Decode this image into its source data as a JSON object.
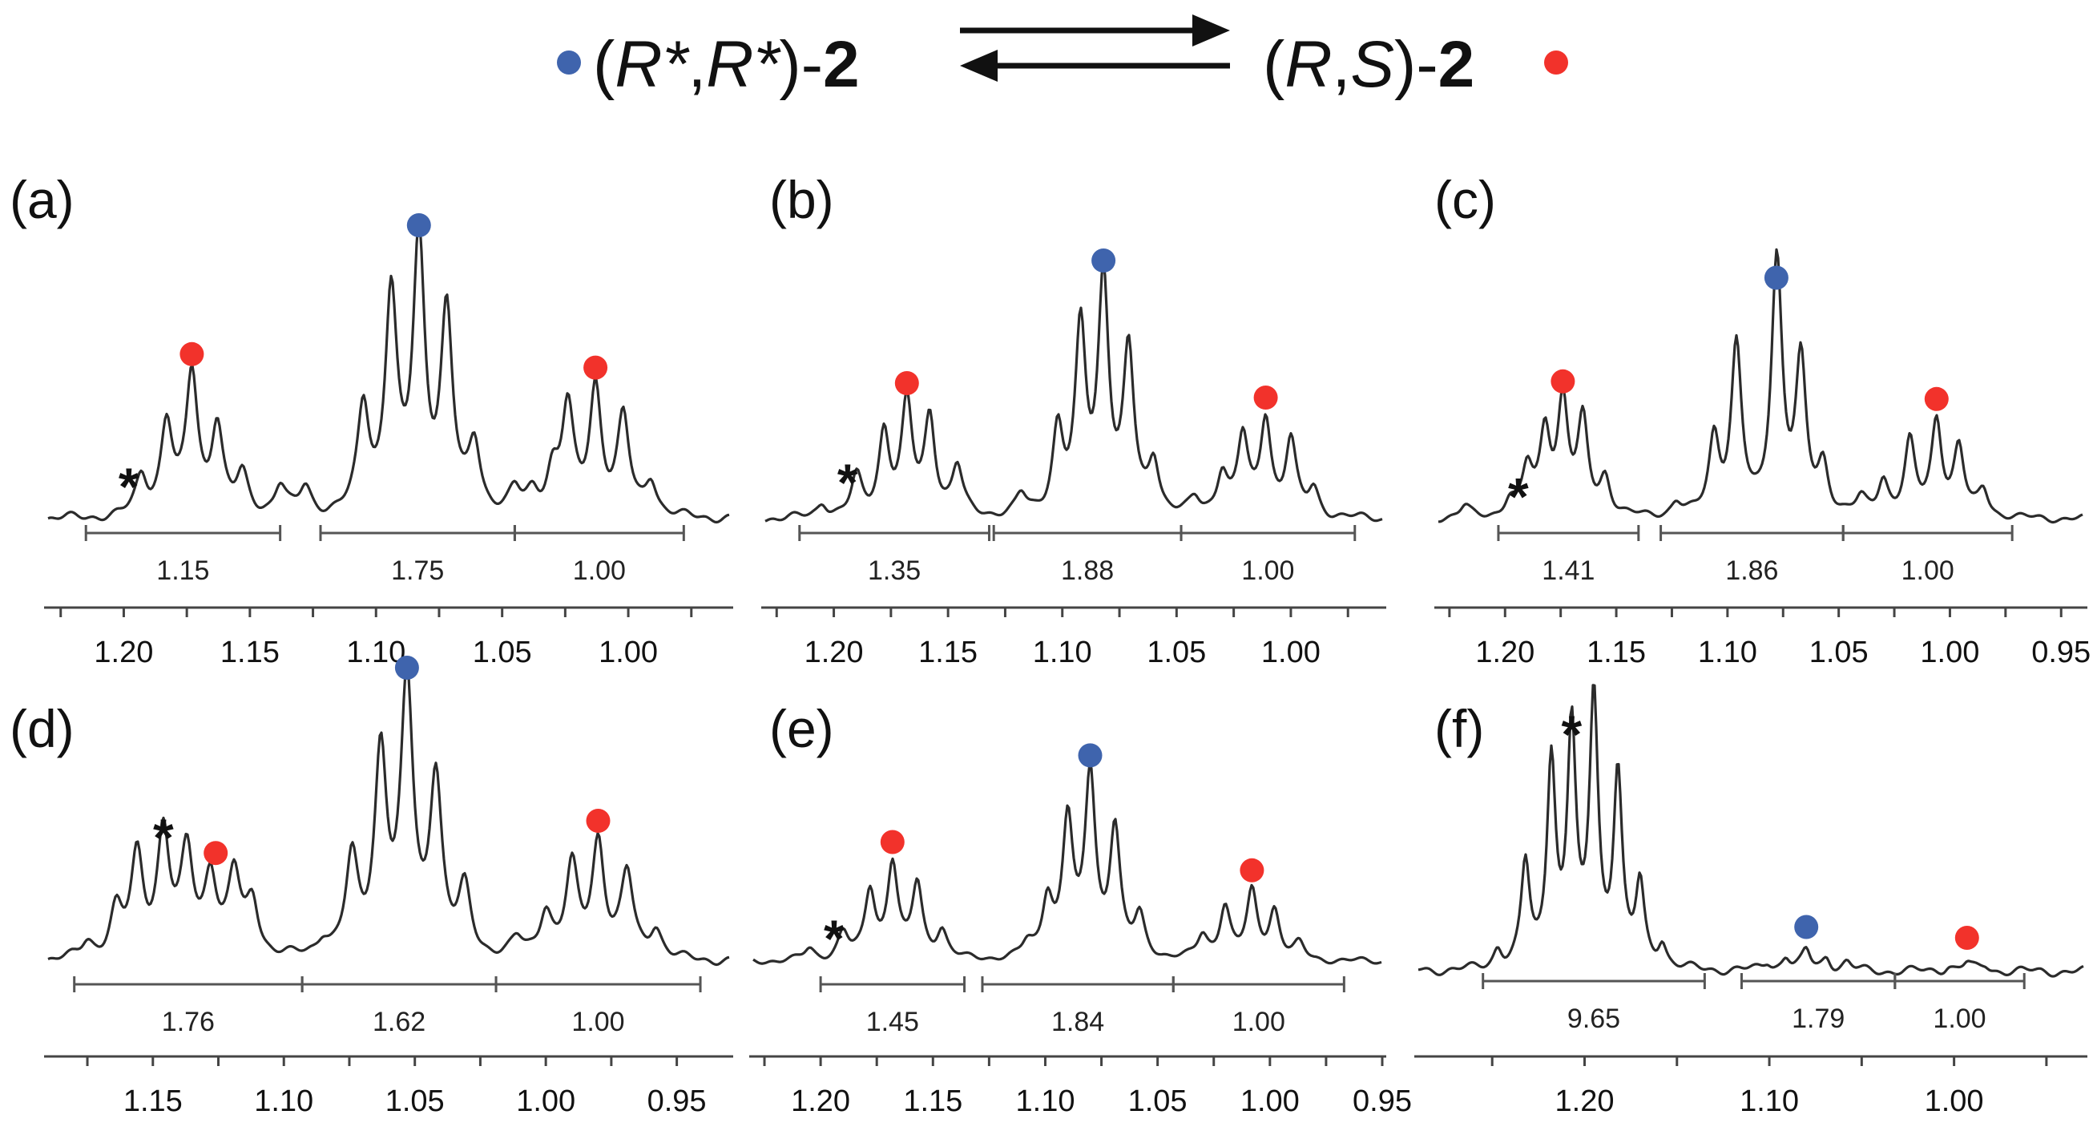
{
  "header": {
    "left_species": {
      "prefix": "(",
      "r1": "R*",
      "comma": ",",
      "r2": "R*",
      "suffix": ")-",
      "num": "2"
    },
    "right_species": {
      "prefix": "(",
      "r1": "R",
      "comma": ",",
      "r2": "S",
      "suffix": ")-",
      "num": "2"
    },
    "equilibrium_icon": "equilibrium-arrows",
    "blue_marker_color": "#3f64ad",
    "red_marker_color": "#f2322b"
  },
  "chart_data": [
    {
      "type": "line",
      "label": "(a)",
      "star": "*",
      "xlim": [
        1.23,
        0.96
      ],
      "ticks": [
        "1.20",
        "1.15",
        "1.10",
        "1.05",
        "1.00"
      ],
      "tick_values": [
        1.2,
        1.15,
        1.1,
        1.05,
        1.0
      ],
      "integrals": [
        {
          "label": "1.15",
          "from": 1.215,
          "to": 1.138
        },
        {
          "label": "1.75",
          "from": 1.122,
          "to": 1.045
        },
        {
          "label": "1.00",
          "from": 1.045,
          "to": 0.978
        }
      ],
      "star_x": 1.198,
      "star_height": 0.12,
      "markers": [
        {
          "color": "blue",
          "x": 1.083,
          "height": 1.0
        },
        {
          "color": "red",
          "x": 1.173,
          "height": 0.52
        },
        {
          "color": "red",
          "x": 1.013,
          "height": 0.47
        }
      ],
      "peaks": [
        {
          "x": 1.193,
          "h": 0.14
        },
        {
          "x": 1.183,
          "h": 0.24
        },
        {
          "x": 1.183,
          "h": 0.1
        },
        {
          "x": 1.173,
          "h": 0.52
        },
        {
          "x": 1.163,
          "h": 0.33
        },
        {
          "x": 1.153,
          "h": 0.14
        },
        {
          "x": 1.138,
          "h": 0.11
        },
        {
          "x": 1.128,
          "h": 0.1
        },
        {
          "x": 1.105,
          "h": 0.39
        },
        {
          "x": 1.094,
          "h": 0.81
        },
        {
          "x": 1.083,
          "h": 1.0
        },
        {
          "x": 1.072,
          "h": 0.74
        },
        {
          "x": 1.061,
          "h": 0.25
        },
        {
          "x": 1.045,
          "h": 0.08
        },
        {
          "x": 1.038,
          "h": 0.07
        },
        {
          "x": 1.03,
          "h": 0.15
        },
        {
          "x": 1.024,
          "h": 0.39
        },
        {
          "x": 1.013,
          "h": 0.47
        },
        {
          "x": 1.002,
          "h": 0.36
        },
        {
          "x": 0.991,
          "h": 0.13
        }
      ]
    },
    {
      "type": "line",
      "label": "(b)",
      "star": "*",
      "xlim": [
        1.23,
        0.96
      ],
      "ticks": [
        "1.20",
        "1.15",
        "1.10",
        "1.05",
        "1.00"
      ],
      "tick_values": [
        1.2,
        1.15,
        1.1,
        1.05,
        1.0
      ],
      "integrals": [
        {
          "label": "1.35",
          "from": 1.215,
          "to": 1.132
        },
        {
          "label": "1.88",
          "from": 1.13,
          "to": 1.048
        },
        {
          "label": "1.00",
          "from": 1.048,
          "to": 0.972
        }
      ],
      "star_x": 1.194,
      "star_height": 0.15,
      "markers": [
        {
          "color": "blue",
          "x": 1.082,
          "height": 0.97
        },
        {
          "color": "red",
          "x": 1.168,
          "height": 0.46
        },
        {
          "color": "red",
          "x": 1.011,
          "height": 0.4
        }
      ],
      "peaks": [
        {
          "x": 1.205,
          "h": 0.06
        },
        {
          "x": 1.19,
          "h": 0.16
        },
        {
          "x": 1.178,
          "h": 0.35
        },
        {
          "x": 1.168,
          "h": 0.46
        },
        {
          "x": 1.158,
          "h": 0.41
        },
        {
          "x": 1.146,
          "h": 0.2
        },
        {
          "x": 1.118,
          "h": 0.08
        },
        {
          "x": 1.102,
          "h": 0.35
        },
        {
          "x": 1.092,
          "h": 0.75
        },
        {
          "x": 1.082,
          "h": 0.97
        },
        {
          "x": 1.071,
          "h": 0.67
        },
        {
          "x": 1.06,
          "h": 0.22
        },
        {
          "x": 1.042,
          "h": 0.06
        },
        {
          "x": 1.03,
          "h": 0.18
        },
        {
          "x": 1.021,
          "h": 0.32
        },
        {
          "x": 1.011,
          "h": 0.4
        },
        {
          "x": 1.0,
          "h": 0.31
        },
        {
          "x": 0.99,
          "h": 0.11
        }
      ]
    },
    {
      "type": "line",
      "label": "(c)",
      "star": "*",
      "xlim": [
        1.23,
        0.94
      ],
      "ticks": [
        "1.20",
        "1.15",
        "1.10",
        "1.05",
        "1.00",
        "0.95"
      ],
      "tick_values": [
        1.2,
        1.15,
        1.1,
        1.05,
        1.0,
        0.95
      ],
      "integrals": [
        {
          "label": "1.41",
          "from": 1.203,
          "to": 1.14
        },
        {
          "label": "1.86",
          "from": 1.13,
          "to": 1.048
        },
        {
          "label": "1.00",
          "from": 1.048,
          "to": 0.972
        }
      ],
      "star_x": 1.194,
      "star_height": 0.1,
      "markers": [
        {
          "color": "blue",
          "x": 1.078,
          "height": 0.98
        },
        {
          "color": "red",
          "x": 1.174,
          "height": 0.51
        },
        {
          "color": "red",
          "x": 1.006,
          "height": 0.43
        }
      ],
      "peaks": [
        {
          "x": 1.218,
          "h": 0.05
        },
        {
          "x": 1.198,
          "h": 0.07
        },
        {
          "x": 1.19,
          "h": 0.21
        },
        {
          "x": 1.182,
          "h": 0.38
        },
        {
          "x": 1.174,
          "h": 0.51
        },
        {
          "x": 1.165,
          "h": 0.42
        },
        {
          "x": 1.155,
          "h": 0.17
        },
        {
          "x": 1.123,
          "h": 0.06
        },
        {
          "x": 1.106,
          "h": 0.35
        },
        {
          "x": 1.096,
          "h": 0.76
        },
        {
          "x": 1.078,
          "h": 0.98
        },
        {
          "x": 1.077,
          "h": 0.2
        },
        {
          "x": 1.067,
          "h": 0.68
        },
        {
          "x": 1.057,
          "h": 0.22
        },
        {
          "x": 1.04,
          "h": 0.07
        },
        {
          "x": 1.03,
          "h": 0.16
        },
        {
          "x": 1.018,
          "h": 0.33
        },
        {
          "x": 1.006,
          "h": 0.43
        },
        {
          "x": 0.996,
          "h": 0.31
        },
        {
          "x": 0.985,
          "h": 0.12
        }
      ]
    },
    {
      "type": "line",
      "label": "(d)",
      "star": "*",
      "xlim": [
        1.19,
        0.93
      ],
      "ticks": [
        "1.15",
        "1.10",
        "1.05",
        "1.00",
        "0.95"
      ],
      "tick_values": [
        1.15,
        1.1,
        1.05,
        1.0,
        0.95
      ],
      "integrals": [
        {
          "label": "1.76",
          "from": 1.18,
          "to": 1.093
        },
        {
          "label": "1.62",
          "from": 1.093,
          "to": 1.019
        },
        {
          "label": "1.00",
          "from": 1.019,
          "to": 0.941
        }
      ],
      "star_x": 1.146,
      "star_height": 0.46,
      "markers": [
        {
          "color": "blue",
          "x": 1.053,
          "height": 1.0
        },
        {
          "color": "red",
          "x": 1.126,
          "height": 0.31
        },
        {
          "color": "red",
          "x": 0.98,
          "height": 0.43
        }
      ],
      "peaks": [
        {
          "x": 1.175,
          "h": 0.06
        },
        {
          "x": 1.164,
          "h": 0.17
        },
        {
          "x": 1.156,
          "h": 0.37
        },
        {
          "x": 1.146,
          "h": 0.46
        },
        {
          "x": 1.137,
          "h": 0.38
        },
        {
          "x": 1.128,
          "h": 0.3
        },
        {
          "x": 1.119,
          "h": 0.3
        },
        {
          "x": 1.112,
          "h": 0.2
        },
        {
          "x": 1.085,
          "h": 0.06
        },
        {
          "x": 1.074,
          "h": 0.35
        },
        {
          "x": 1.063,
          "h": 0.75
        },
        {
          "x": 1.053,
          "h": 1.0
        },
        {
          "x": 1.042,
          "h": 0.66
        },
        {
          "x": 1.031,
          "h": 0.24
        },
        {
          "x": 1.011,
          "h": 0.06
        },
        {
          "x": 1.0,
          "h": 0.17
        },
        {
          "x": 0.99,
          "h": 0.33
        },
        {
          "x": 0.98,
          "h": 0.43
        },
        {
          "x": 0.969,
          "h": 0.31
        },
        {
          "x": 0.958,
          "h": 0.11
        }
      ]
    },
    {
      "type": "line",
      "label": "(e)",
      "star": "*",
      "xlim": [
        1.23,
        0.95
      ],
      "ticks": [
        "1.20",
        "1.15",
        "1.10",
        "1.05",
        "1.00",
        "0.95"
      ],
      "tick_values": [
        1.2,
        1.15,
        1.1,
        1.05,
        1.0,
        0.95
      ],
      "integrals": [
        {
          "label": "1.45",
          "from": 1.2,
          "to": 1.136
        },
        {
          "label": "1.84",
          "from": 1.128,
          "to": 1.043
        },
        {
          "label": "1.00",
          "from": 1.043,
          "to": 0.967
        }
      ],
      "star_x": 1.194,
      "star_height": 0.12,
      "markers": [
        {
          "color": "blue",
          "x": 1.08,
          "height": 0.96
        },
        {
          "color": "red",
          "x": 1.168,
          "height": 0.5
        },
        {
          "color": "red",
          "x": 1.008,
          "height": 0.35
        }
      ],
      "peaks": [
        {
          "x": 1.205,
          "h": 0.06
        },
        {
          "x": 1.19,
          "h": 0.14
        },
        {
          "x": 1.178,
          "h": 0.36
        },
        {
          "x": 1.168,
          "h": 0.5
        },
        {
          "x": 1.157,
          "h": 0.39
        },
        {
          "x": 1.146,
          "h": 0.15
        },
        {
          "x": 1.108,
          "h": 0.07
        },
        {
          "x": 1.099,
          "h": 0.31
        },
        {
          "x": 1.09,
          "h": 0.72
        },
        {
          "x": 1.08,
          "h": 0.96
        },
        {
          "x": 1.069,
          "h": 0.68
        },
        {
          "x": 1.058,
          "h": 0.21
        },
        {
          "x": 1.03,
          "h": 0.12
        },
        {
          "x": 1.02,
          "h": 0.28
        },
        {
          "x": 1.008,
          "h": 0.35
        },
        {
          "x": 0.998,
          "h": 0.26
        },
        {
          "x": 0.987,
          "h": 0.08
        }
      ]
    },
    {
      "type": "line",
      "label": "(f)",
      "star": "*",
      "xlim": [
        1.29,
        0.93
      ],
      "ticks": [
        "1.20",
        "1.10",
        "1.00"
      ],
      "tick_values": [
        1.2,
        1.1,
        1.0
      ],
      "integrals": [
        {
          "label": "9.65",
          "from": 1.255,
          "to": 1.135
        },
        {
          "label": "1.79",
          "from": 1.115,
          "to": 1.032
        },
        {
          "label": "1.00",
          "from": 1.032,
          "to": 0.962
        }
      ],
      "star_x": 1.207,
      "star_height": 0.88,
      "markers": [
        {
          "color": "blue",
          "x": 1.08,
          "height": 0.07
        },
        {
          "color": "red",
          "x": 0.993,
          "height": 0.03
        }
      ],
      "peaks": [
        {
          "x": 1.247,
          "h": 0.07
        },
        {
          "x": 1.232,
          "h": 0.38
        },
        {
          "x": 1.218,
          "h": 0.77
        },
        {
          "x": 1.207,
          "h": 0.88
        },
        {
          "x": 1.195,
          "h": 1.0
        },
        {
          "x": 1.182,
          "h": 0.72
        },
        {
          "x": 1.17,
          "h": 0.3
        },
        {
          "x": 1.158,
          "h": 0.09
        },
        {
          "x": 1.101,
          "h": 0.03
        },
        {
          "x": 1.091,
          "h": 0.05
        },
        {
          "x": 1.08,
          "h": 0.07
        },
        {
          "x": 1.069,
          "h": 0.05
        },
        {
          "x": 1.058,
          "h": 0.03
        },
        {
          "x": 1.003,
          "h": 0.02
        },
        {
          "x": 0.993,
          "h": 0.03
        },
        {
          "x": 0.983,
          "h": 0.02
        }
      ]
    }
  ]
}
